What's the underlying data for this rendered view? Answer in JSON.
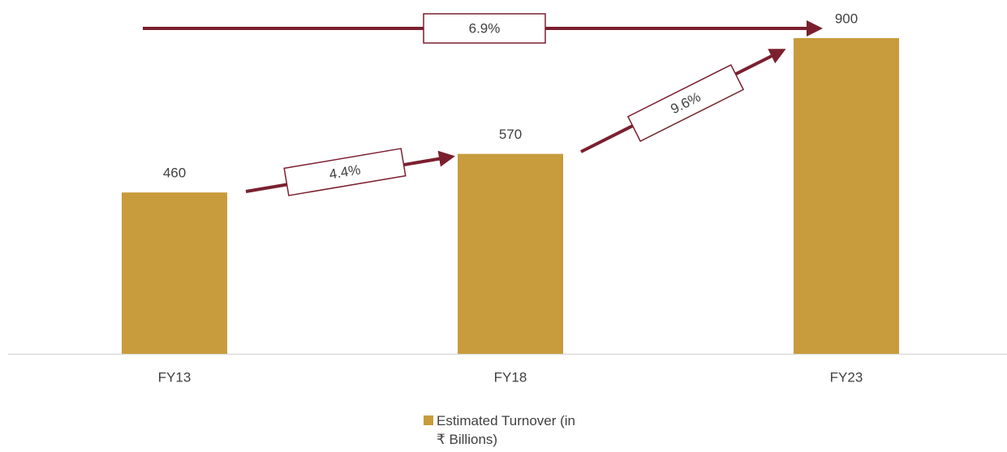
{
  "chart_data": {
    "type": "bar",
    "categories": [
      "FY13",
      "FY18",
      "FY23"
    ],
    "series": [
      {
        "name": "Estimated Turnover (in ₹ Billions)",
        "color": "#c89b3c",
        "values": [
          460,
          570,
          900
        ]
      }
    ],
    "annotations": [
      {
        "label": "6.9%"
      },
      {
        "label": "4.4%"
      },
      {
        "label": "9.6%"
      }
    ],
    "annotation_color": "#7b1f2e"
  }
}
